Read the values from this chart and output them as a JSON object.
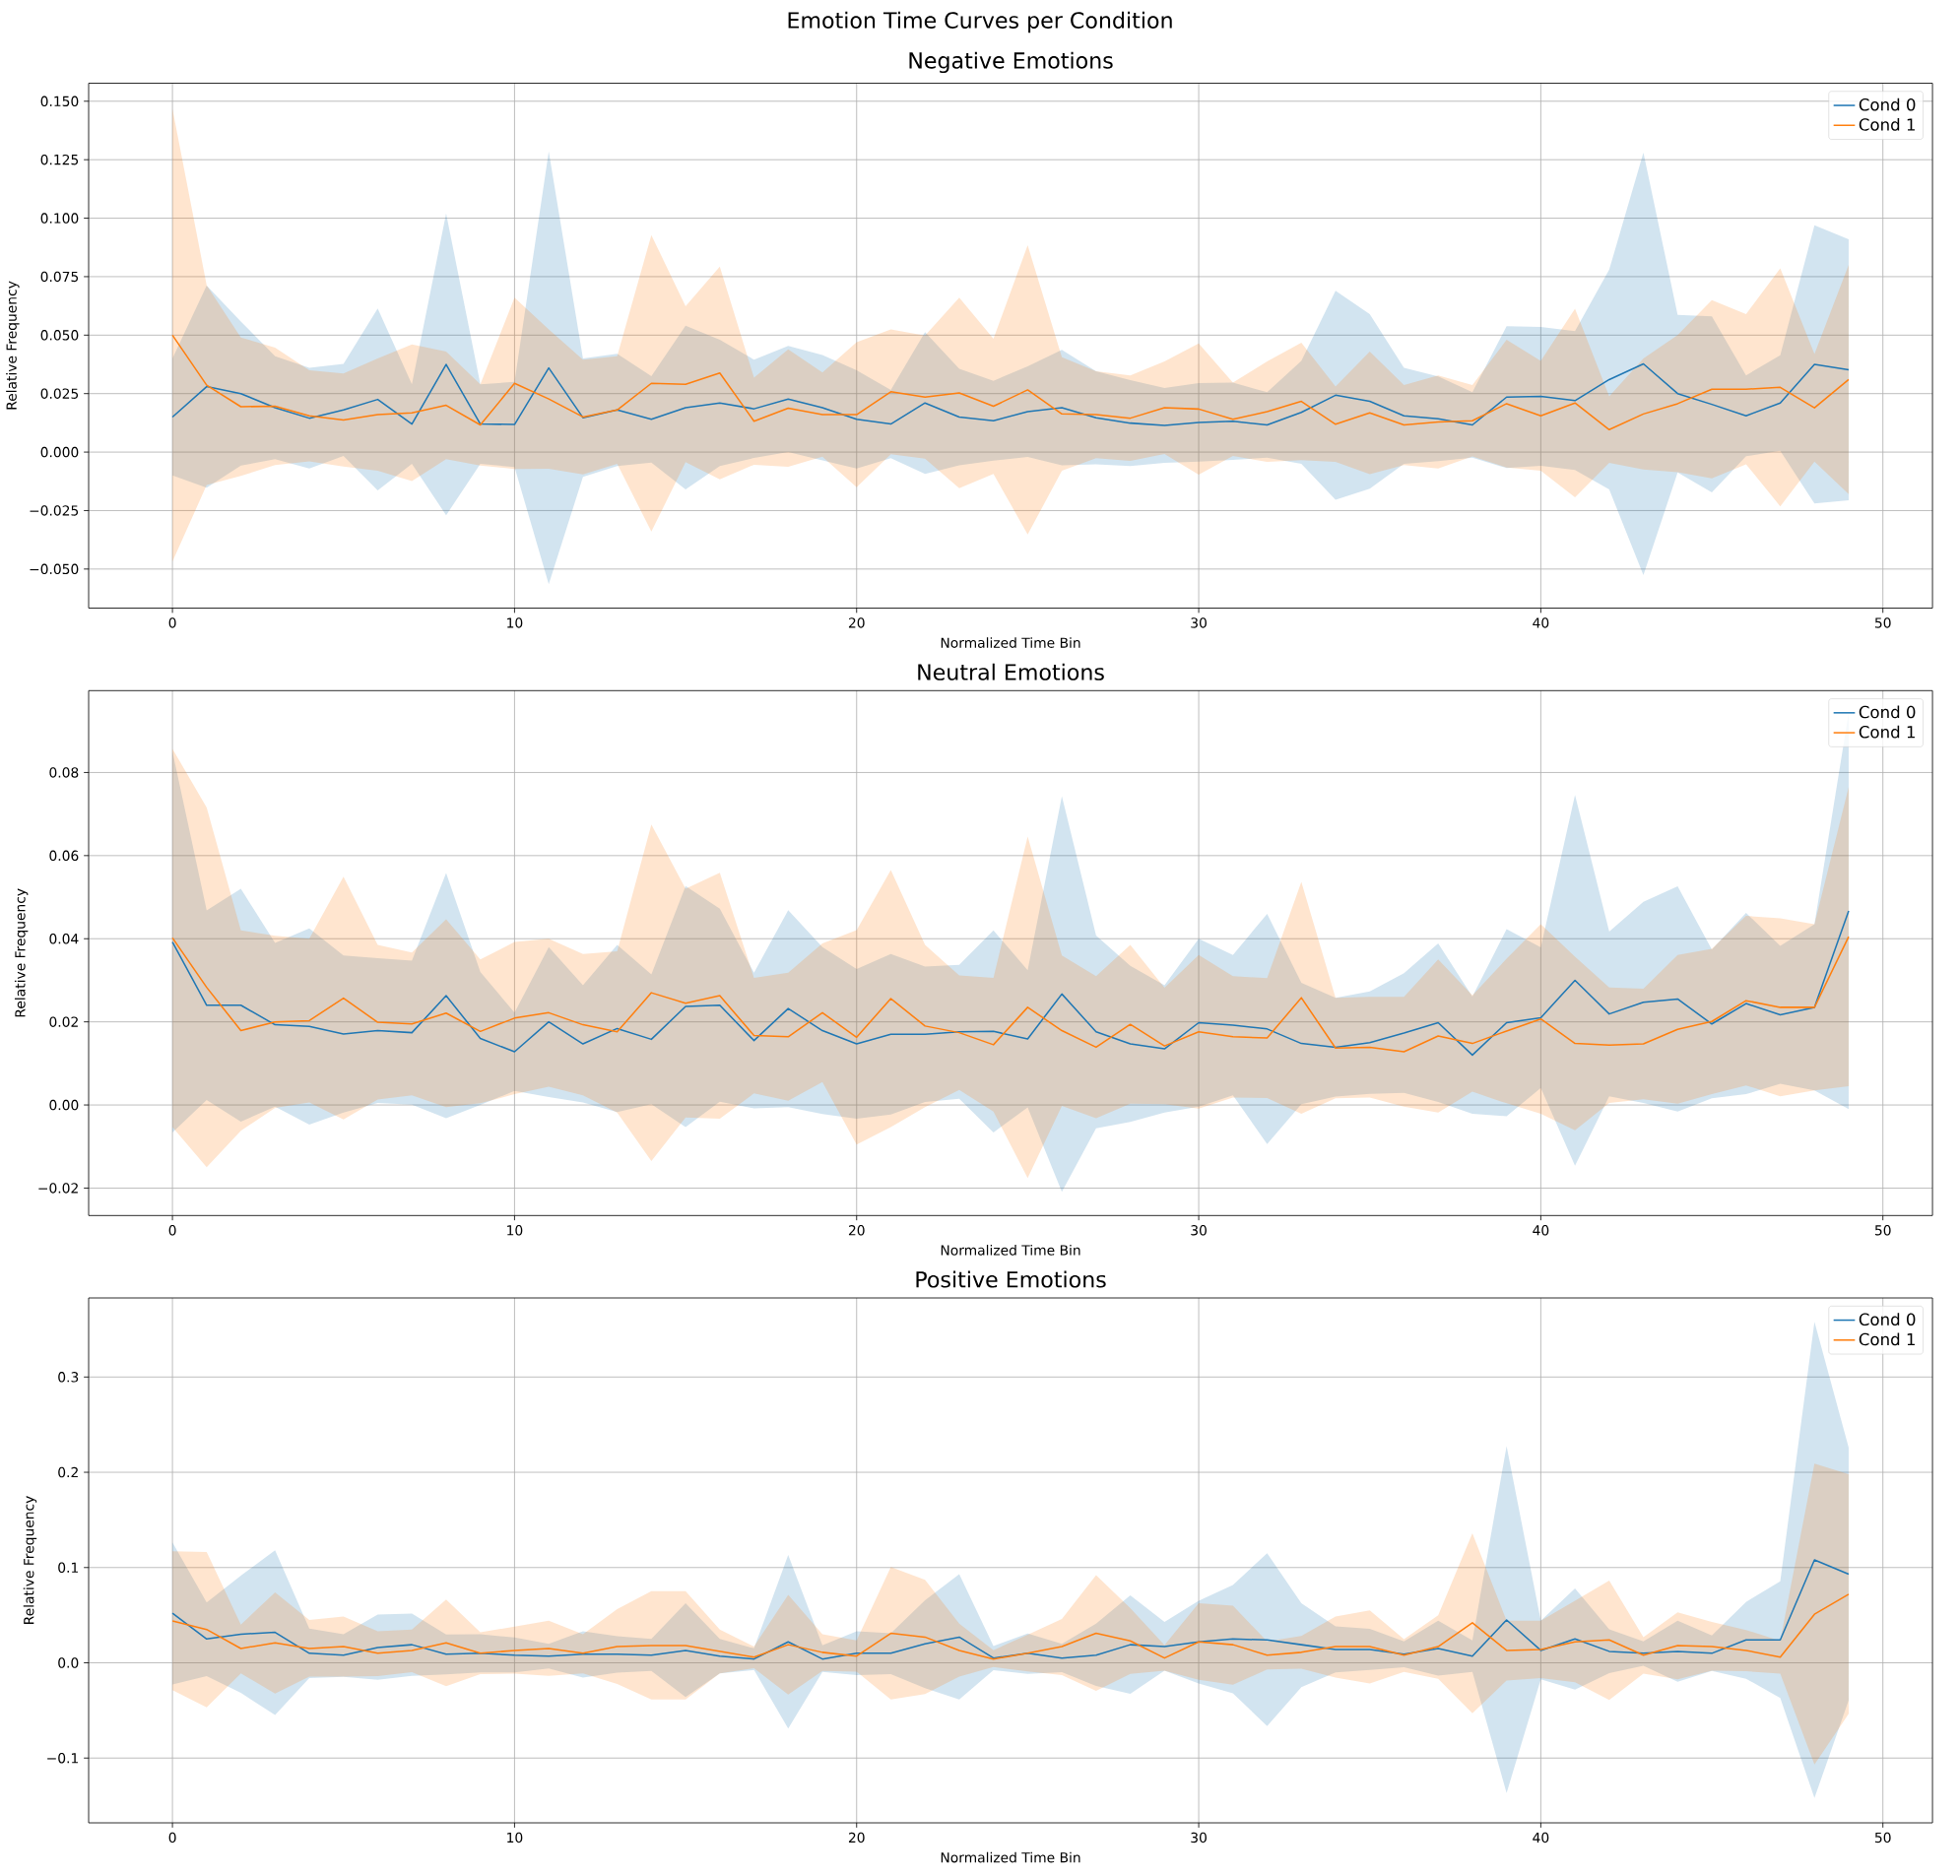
{
  "chart_data": [
    {
      "type": "line",
      "title": "Negative Emotions",
      "xlabel": "Normalized Time Bin",
      "ylabel": "Relative Frequency",
      "annotations": [
        "Emotion Time Curves per Condition"
      ],
      "grid": true,
      "legend": "top right",
      "x": [
        0,
        1,
        2,
        3,
        4,
        5,
        6,
        7,
        8,
        9,
        10,
        11,
        12,
        13,
        14,
        15,
        16,
        17,
        18,
        19,
        20,
        21,
        22,
        23,
        24,
        25,
        26,
        27,
        28,
        29,
        30,
        31,
        32,
        33,
        34,
        35,
        36,
        37,
        38,
        39,
        40,
        41,
        42,
        43,
        44,
        45,
        46,
        47,
        48,
        49
      ],
      "xlim": [
        -2.45,
        51.45
      ],
      "xticks": [
        0,
        10,
        20,
        30,
        40,
        50
      ],
      "ylim": [
        -0.0667,
        0.1577
      ],
      "yticks": [
        {
          "value": -0.05,
          "label": "−0.050"
        },
        {
          "value": -0.025,
          "label": "−0.025"
        },
        {
          "value": 0,
          "label": "0.000"
        },
        {
          "value": 0.025,
          "label": "0.025"
        },
        {
          "value": 0.05,
          "label": "0.050"
        },
        {
          "value": 0.075,
          "label": "0.075"
        },
        {
          "value": 0.1,
          "label": "0.100"
        },
        {
          "value": 0.125,
          "label": "0.125"
        },
        {
          "value": 0.15,
          "label": "0.150"
        }
      ],
      "series": [
        {
          "name": "Cond 0",
          "color": "#1f77b4",
          "values": [
            0.015,
            0.028,
            0.025,
            0.019,
            0.0145,
            0.018,
            0.0225,
            0.012,
            0.0375,
            0.012,
            0.0118,
            0.036,
            0.0147,
            0.018,
            0.014,
            0.019,
            0.021,
            0.0185,
            0.0227,
            0.019,
            0.014,
            0.012,
            0.021,
            0.015,
            0.0134,
            0.0173,
            0.019,
            0.0147,
            0.0124,
            0.0114,
            0.0127,
            0.0132,
            0.0116,
            0.017,
            0.0243,
            0.0217,
            0.0155,
            0.0142,
            0.0116,
            0.0235,
            0.0238,
            0.022,
            0.031,
            0.0377,
            0.025,
            0.0204,
            0.0155,
            0.021,
            0.0375,
            0.0352
          ],
          "upper": [
            0.04,
            0.0712,
            0.0558,
            0.041,
            0.036,
            0.0377,
            0.0614,
            0.029,
            0.102,
            0.029,
            0.03,
            0.1285,
            0.04,
            0.042,
            0.0325,
            0.054,
            0.048,
            0.0395,
            0.0454,
            0.0415,
            0.035,
            0.0266,
            0.0513,
            0.0356,
            0.0305,
            0.0367,
            0.0437,
            0.0346,
            0.0308,
            0.0274,
            0.0295,
            0.0297,
            0.0256,
            0.039,
            0.069,
            0.059,
            0.036,
            0.0323,
            0.0256,
            0.0538,
            0.0535,
            0.0517,
            0.078,
            0.128,
            0.0587,
            0.058,
            0.0328,
            0.0414,
            0.097,
            0.091
          ],
          "lower": [
            -0.01,
            -0.0152,
            -0.0058,
            -0.003,
            -0.007,
            -0.0017,
            -0.0164,
            -0.005,
            -0.027,
            -0.005,
            -0.0064,
            -0.0565,
            -0.0106,
            -0.006,
            -0.0045,
            -0.016,
            -0.006,
            -0.0025,
            0.0,
            -0.0035,
            -0.007,
            -0.0026,
            -0.0093,
            -0.0056,
            -0.0037,
            -0.0021,
            -0.0057,
            -0.0052,
            -0.006,
            -0.0046,
            -0.0041,
            -0.0033,
            -0.0024,
            -0.005,
            -0.0204,
            -0.0156,
            -0.005,
            -0.0039,
            -0.0024,
            -0.0068,
            -0.0059,
            -0.0077,
            -0.016,
            -0.0526,
            -0.0087,
            -0.0172,
            -0.0018,
            0.0006,
            -0.022,
            -0.0206
          ]
        },
        {
          "name": "Cond 1",
          "color": "#ff7f0e",
          "values": [
            0.05,
            0.0286,
            0.0194,
            0.0196,
            0.0155,
            0.0137,
            0.016,
            0.0168,
            0.02,
            0.0116,
            0.0294,
            0.0227,
            0.015,
            0.018,
            0.0294,
            0.029,
            0.0338,
            0.0132,
            0.0188,
            0.016,
            0.016,
            0.0258,
            0.0235,
            0.0253,
            0.0196,
            0.0266,
            0.0163,
            0.016,
            0.0145,
            0.019,
            0.0184,
            0.014,
            0.0173,
            0.0217,
            0.0119,
            0.0168,
            0.0116,
            0.0129,
            0.0134,
            0.0207,
            0.0155,
            0.021,
            0.0096,
            0.0163,
            0.0207,
            0.0269,
            0.0269,
            0.0277,
            0.0189,
            0.031
          ],
          "upper": [
            0.1468,
            0.0713,
            0.049,
            0.0447,
            0.035,
            0.0336,
            0.04,
            0.046,
            0.043,
            0.029,
            0.066,
            0.0525,
            0.0395,
            0.041,
            0.0928,
            0.0623,
            0.0793,
            0.0318,
            0.0439,
            0.034,
            0.047,
            0.0525,
            0.0498,
            0.066,
            0.0485,
            0.0884,
            0.0406,
            0.0346,
            0.0328,
            0.0388,
            0.0465,
            0.0297,
            0.0388,
            0.0468,
            0.028,
            0.043,
            0.0287,
            0.0328,
            0.0287,
            0.048,
            0.039,
            0.0613,
            0.0238,
            0.04,
            0.05,
            0.065,
            0.059,
            0.0786,
            0.0419,
            0.08
          ],
          "lower": [
            -0.0468,
            -0.0141,
            -0.0102,
            -0.0055,
            -0.004,
            -0.0062,
            -0.008,
            -0.0124,
            -0.003,
            -0.0058,
            -0.0072,
            -0.0071,
            -0.0095,
            -0.005,
            -0.034,
            -0.0043,
            -0.0117,
            -0.0054,
            -0.0063,
            -0.002,
            -0.015,
            -0.0009,
            -0.0028,
            -0.0154,
            -0.0093,
            -0.0352,
            -0.008,
            -0.0026,
            -0.0038,
            -0.0008,
            -0.0097,
            -0.0017,
            -0.0042,
            -0.0034,
            -0.0042,
            -0.0094,
            -0.0055,
            -0.007,
            -0.0019,
            -0.0066,
            -0.008,
            -0.0193,
            -0.0046,
            -0.0074,
            -0.0086,
            -0.0112,
            -0.0052,
            -0.0232,
            -0.0041,
            -0.018
          ]
        }
      ]
    },
    {
      "type": "line",
      "title": "Neutral Emotions",
      "xlabel": "Normalized Time Bin",
      "ylabel": "Relative Frequency",
      "grid": true,
      "legend": "top right",
      "x": [
        0,
        1,
        2,
        3,
        4,
        5,
        6,
        7,
        8,
        9,
        10,
        11,
        12,
        13,
        14,
        15,
        16,
        17,
        18,
        19,
        20,
        21,
        22,
        23,
        24,
        25,
        26,
        27,
        28,
        29,
        30,
        31,
        32,
        33,
        34,
        35,
        36,
        37,
        38,
        39,
        40,
        41,
        42,
        43,
        44,
        45,
        46,
        47,
        48,
        49
      ],
      "xlim": [
        -2.45,
        51.45
      ],
      "xticks": [
        0,
        10,
        20,
        30,
        40,
        50
      ],
      "ylim": [
        -0.0266,
        0.0997
      ],
      "yticks": [
        {
          "value": -0.02,
          "label": "−0.02"
        },
        {
          "value": 0,
          "label": "0.00"
        },
        {
          "value": 0.02,
          "label": "0.02"
        },
        {
          "value": 0.04,
          "label": "0.04"
        },
        {
          "value": 0.06,
          "label": "0.06"
        },
        {
          "value": 0.08,
          "label": "0.08"
        }
      ],
      "series": [
        {
          "name": "Cond 0",
          "color": "#1f77b4",
          "values": [
            0.0392,
            0.024,
            0.024,
            0.0193,
            0.0189,
            0.0171,
            0.0179,
            0.0174,
            0.0263,
            0.016,
            0.0128,
            0.02,
            0.0147,
            0.0184,
            0.0158,
            0.0237,
            0.024,
            0.0155,
            0.0232,
            0.0179,
            0.0147,
            0.017,
            0.017,
            0.0176,
            0.0177,
            0.0159,
            0.0267,
            0.0176,
            0.0147,
            0.0135,
            0.0198,
            0.0192,
            0.0183,
            0.0148,
            0.0139,
            0.015,
            0.0173,
            0.0198,
            0.012,
            0.0198,
            0.021,
            0.03,
            0.0219,
            0.0247,
            0.0255,
            0.0195,
            0.0244,
            0.0217,
            0.0235,
            0.0467
          ],
          "upper": [
            0.085,
            0.0468,
            0.052,
            0.039,
            0.0425,
            0.036,
            0.0353,
            0.0347,
            0.0558,
            0.032,
            0.0222,
            0.038,
            0.0288,
            0.0385,
            0.0314,
            0.0527,
            0.0472,
            0.0318,
            0.0469,
            0.038,
            0.0327,
            0.0363,
            0.0333,
            0.0337,
            0.042,
            0.0324,
            0.0743,
            0.0408,
            0.0335,
            0.0288,
            0.04,
            0.0361,
            0.046,
            0.0294,
            0.0258,
            0.0273,
            0.0317,
            0.0389,
            0.0261,
            0.0423,
            0.0379,
            0.0746,
            0.0417,
            0.0489,
            0.0526,
            0.0374,
            0.0462,
            0.0383,
            0.0435,
            0.0944
          ],
          "lower": [
            -0.0066,
            0.0012,
            -0.004,
            -0.0004,
            -0.0047,
            -0.0018,
            0.0005,
            0.0001,
            -0.0032,
            0.0,
            0.0034,
            0.0019,
            0.0006,
            -0.0017,
            0.0002,
            -0.0053,
            0.0008,
            -0.0008,
            -0.0005,
            -0.0022,
            -0.0033,
            -0.0023,
            0.0007,
            0.0015,
            -0.0066,
            -0.0006,
            -0.0209,
            -0.0056,
            -0.0041,
            -0.0018,
            -0.0004,
            0.0023,
            -0.0094,
            0.0002,
            0.002,
            0.0027,
            0.0029,
            0.0007,
            -0.0021,
            -0.0027,
            0.0041,
            -0.0146,
            0.0021,
            0.0005,
            -0.0016,
            0.0016,
            0.0026,
            0.0051,
            0.0035,
            -0.001
          ]
        },
        {
          "name": "Cond 1",
          "color": "#ff7f0e",
          "values": [
            0.0402,
            0.0283,
            0.0179,
            0.02,
            0.0203,
            0.0257,
            0.0199,
            0.0195,
            0.0221,
            0.0177,
            0.0209,
            0.0222,
            0.0193,
            0.0176,
            0.027,
            0.0245,
            0.0263,
            0.0167,
            0.0164,
            0.0222,
            0.0163,
            0.0256,
            0.019,
            0.0174,
            0.0145,
            0.0235,
            0.0179,
            0.0139,
            0.0194,
            0.0142,
            0.0176,
            0.0164,
            0.0161,
            0.0258,
            0.0137,
            0.0139,
            0.0128,
            0.0166,
            0.0148,
            0.0178,
            0.0207,
            0.0148,
            0.0144,
            0.0147,
            0.0182,
            0.0201,
            0.0251,
            0.0235,
            0.0235,
            0.0405
          ],
          "upper": [
            0.0857,
            0.0716,
            0.042,
            0.0407,
            0.04,
            0.0549,
            0.0385,
            0.0367,
            0.0447,
            0.035,
            0.0392,
            0.04,
            0.0363,
            0.037,
            0.0675,
            0.052,
            0.0559,
            0.0306,
            0.0318,
            0.0389,
            0.0421,
            0.0565,
            0.0385,
            0.0312,
            0.0306,
            0.0646,
            0.036,
            0.031,
            0.0385,
            0.0282,
            0.0361,
            0.031,
            0.0305,
            0.0537,
            0.0258,
            0.026,
            0.026,
            0.035,
            0.0264,
            0.0352,
            0.0435,
            0.0357,
            0.0283,
            0.028,
            0.0361,
            0.0376,
            0.0455,
            0.0449,
            0.0435,
            0.0765
          ],
          "lower": [
            -0.0053,
            -0.015,
            -0.0062,
            -0.0007,
            0.0006,
            -0.0035,
            0.0013,
            0.0023,
            -0.0005,
            0.0004,
            0.0026,
            0.0044,
            0.0023,
            -0.0018,
            -0.0135,
            -0.003,
            -0.0033,
            0.0028,
            0.001,
            0.0055,
            -0.0095,
            -0.0053,
            -0.0005,
            0.0036,
            -0.0016,
            -0.0176,
            -0.0002,
            -0.0032,
            0.0003,
            0.0002,
            -0.0009,
            0.0018,
            0.0017,
            -0.0021,
            0.0016,
            0.0018,
            -0.0004,
            -0.0018,
            0.0032,
            0.0004,
            -0.0021,
            -0.0061,
            0.0005,
            0.0014,
            0.0003,
            0.0026,
            0.0047,
            0.0021,
            0.0035,
            0.0045
          ]
        }
      ]
    },
    {
      "type": "line",
      "title": "Positive Emotions",
      "xlabel": "Normalized Time Bin",
      "ylabel": "Relative Frequency",
      "grid": true,
      "legend": "top right",
      "x": [
        0,
        1,
        2,
        3,
        4,
        5,
        6,
        7,
        8,
        9,
        10,
        11,
        12,
        13,
        14,
        15,
        16,
        17,
        18,
        19,
        20,
        21,
        22,
        23,
        24,
        25,
        26,
        27,
        28,
        29,
        30,
        31,
        32,
        33,
        34,
        35,
        36,
        37,
        38,
        39,
        40,
        41,
        42,
        43,
        44,
        45,
        46,
        47,
        48,
        49
      ],
      "xlim": [
        -2.45,
        51.45
      ],
      "xticks": [
        0,
        10,
        20,
        30,
        40,
        50
      ],
      "ylim": [
        -0.168,
        0.383
      ],
      "yticks": [
        {
          "value": -0.1,
          "label": "−0.1"
        },
        {
          "value": 0,
          "label": "0.0"
        },
        {
          "value": 0.1,
          "label": "0.1"
        },
        {
          "value": 0.2,
          "label": "0.2"
        },
        {
          "value": 0.3,
          "label": "0.3"
        }
      ],
      "series": [
        {
          "name": "Cond 0",
          "color": "#1f77b4",
          "values": [
            0.052,
            0.025,
            0.03,
            0.032,
            0.01,
            0.008,
            0.016,
            0.019,
            0.009,
            0.01,
            0.008,
            0.007,
            0.009,
            0.009,
            0.008,
            0.013,
            0.007,
            0.004,
            0.022,
            0.004,
            0.01,
            0.01,
            0.02,
            0.027,
            0.005,
            0.01,
            0.005,
            0.008,
            0.019,
            0.017,
            0.022,
            0.025,
            0.024,
            0.019,
            0.014,
            0.014,
            0.009,
            0.015,
            0.007,
            0.045,
            0.013,
            0.025,
            0.012,
            0.01,
            0.012,
            0.01,
            0.024,
            0.024,
            0.108,
            0.093
          ],
          "upper": [
            0.1264,
            0.0632,
            0.0916,
            0.118,
            0.036,
            0.03,
            0.0506,
            0.0518,
            0.0297,
            0.03,
            0.0265,
            0.02,
            0.033,
            0.028,
            0.025,
            0.0626,
            0.025,
            0.0152,
            0.1131,
            0.0183,
            0.033,
            0.031,
            0.0657,
            0.093,
            0.0177,
            0.0307,
            0.02,
            0.041,
            0.0709,
            0.0428,
            0.0652,
            0.0818,
            0.115,
            0.0626,
            0.0383,
            0.0358,
            0.0224,
            0.0441,
            0.0236,
            0.2275,
            0.0441,
            0.078,
            0.0351,
            0.0224,
            0.0441,
            0.0288,
            0.0639,
            0.0856,
            0.358,
            0.226
          ],
          "lower": [
            -0.0228,
            -0.014,
            -0.0316,
            -0.0548,
            -0.016,
            -0.0148,
            -0.0178,
            -0.0138,
            -0.0121,
            -0.01,
            -0.0101,
            -0.006,
            -0.0154,
            -0.0104,
            -0.0086,
            -0.036,
            -0.011,
            -0.0076,
            -0.0689,
            -0.0095,
            -0.013,
            -0.012,
            -0.0265,
            -0.0386,
            -0.0077,
            -0.0115,
            -0.0098,
            -0.0244,
            -0.0325,
            -0.0082,
            -0.0218,
            -0.032,
            -0.0664,
            -0.0256,
            -0.0101,
            -0.0076,
            -0.0046,
            -0.0135,
            -0.0096,
            -0.1367,
            -0.0173,
            -0.0282,
            -0.0109,
            -0.0032,
            -0.0199,
            -0.0084,
            -0.0167,
            -0.037,
            -0.142,
            -0.0394
          ]
        },
        {
          "name": "Cond 1",
          "color": "#ff7f0e",
          "values": [
            0.044,
            0.035,
            0.015,
            0.021,
            0.015,
            0.017,
            0.01,
            0.013,
            0.021,
            0.01,
            0.013,
            0.015,
            0.01,
            0.017,
            0.018,
            0.018,
            0.012,
            0.006,
            0.019,
            0.011,
            0.007,
            0.031,
            0.027,
            0.013,
            0.004,
            0.01,
            0.017,
            0.031,
            0.023,
            0.005,
            0.022,
            0.019,
            0.008,
            0.011,
            0.017,
            0.017,
            0.008,
            0.017,
            0.042,
            0.013,
            0.014,
            0.022,
            0.024,
            0.008,
            0.018,
            0.017,
            0.013,
            0.006,
            0.051,
            0.072
          ],
          "upper": [
            0.117,
            0.1163,
            0.04,
            0.074,
            0.0449,
            0.0487,
            0.033,
            0.035,
            0.0664,
            0.032,
            0.038,
            0.0442,
            0.03,
            0.0563,
            0.0752,
            0.0752,
            0.035,
            0.017,
            0.0714,
            0.03,
            0.0234,
            0.1005,
            0.0872,
            0.041,
            0.0133,
            0.0294,
            0.046,
            0.092,
            0.0575,
            0.0185,
            0.0626,
            0.06,
            0.0224,
            0.0281,
            0.0486,
            0.055,
            0.0249,
            0.05,
            0.136,
            0.0441,
            0.0441,
            0.0652,
            0.0863,
            0.0268,
            0.053,
            0.0428,
            0.0345,
            0.023,
            0.209,
            0.198
          ],
          "lower": [
            -0.0286,
            -0.0467,
            -0.011,
            -0.0322,
            -0.0145,
            -0.0145,
            -0.014,
            -0.0098,
            -0.0246,
            -0.012,
            -0.0114,
            -0.0138,
            -0.011,
            -0.0221,
            -0.0386,
            -0.0386,
            -0.011,
            -0.0056,
            -0.0334,
            -0.0086,
            -0.0094,
            -0.0385,
            -0.0328,
            -0.0144,
            -0.0045,
            -0.009,
            -0.0128,
            -0.0294,
            -0.0115,
            -0.0083,
            -0.0178,
            -0.023,
            -0.007,
            -0.0063,
            -0.0154,
            -0.0218,
            -0.0095,
            -0.0168,
            -0.053,
            -0.0185,
            -0.0159,
            -0.0204,
            -0.0391,
            -0.0114,
            -0.0172,
            -0.0082,
            -0.0089,
            -0.0114,
            -0.1068,
            -0.0536
          ]
        }
      ]
    }
  ]
}
